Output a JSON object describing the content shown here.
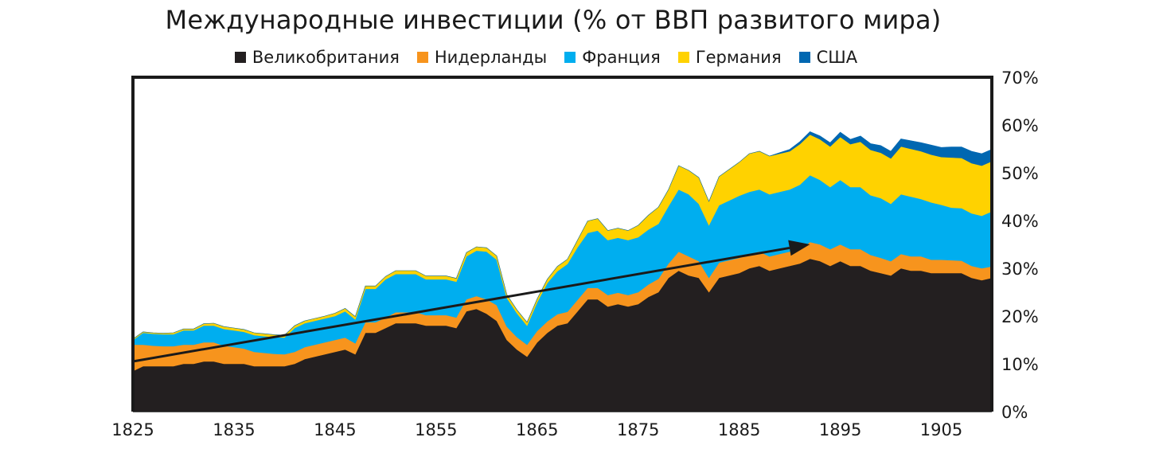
{
  "chart_data": {
    "type": "area",
    "stacked": true,
    "title": "Международные инвестиции (% от ВВП развитого мира)",
    "x_ticks": [
      1825,
      1835,
      1845,
      1855,
      1865,
      1875,
      1885,
      1895,
      1905
    ],
    "xlim": [
      1825,
      1910
    ],
    "y_ticks": [
      "0%",
      "10%",
      "20%",
      "30%",
      "40%",
      "50%",
      "60%",
      "70%"
    ],
    "ylim": [
      0,
      70
    ],
    "y_axis_side": "right",
    "legend_position": "top",
    "grid": false,
    "arrow": {
      "from": [
        1825,
        10.5
      ],
      "to": [
        1892,
        35
      ]
    },
    "x": [
      1825,
      1826,
      1827,
      1828,
      1829,
      1830,
      1831,
      1832,
      1833,
      1834,
      1835,
      1836,
      1837,
      1838,
      1839,
      1840,
      1841,
      1842,
      1843,
      1844,
      1845,
      1846,
      1847,
      1848,
      1849,
      1850,
      1851,
      1852,
      1853,
      1854,
      1855,
      1856,
      1857,
      1858,
      1859,
      1860,
      1861,
      1862,
      1863,
      1864,
      1865,
      1866,
      1867,
      1868,
      1869,
      1870,
      1871,
      1872,
      1873,
      1874,
      1875,
      1876,
      1877,
      1878,
      1879,
      1880,
      1881,
      1882,
      1883,
      1884,
      1885,
      1886,
      1887,
      1888,
      1889,
      1890,
      1891,
      1892,
      1893,
      1894,
      1895,
      1896,
      1897,
      1898,
      1899,
      1900,
      1901,
      1902,
      1903,
      1904,
      1905,
      1906,
      1907,
      1908,
      1909,
      1910
    ],
    "series": [
      {
        "name": "Великобритания",
        "color": "#231f20",
        "values": [
          8.5,
          9.5,
          9.5,
          9.5,
          9.5,
          10,
          10,
          10.5,
          10.5,
          10,
          10,
          10,
          9.5,
          9.5,
          9.5,
          9.5,
          10,
          11,
          11.5,
          12,
          12.5,
          13,
          12,
          16.5,
          16.5,
          17.5,
          18.5,
          18.5,
          18.5,
          18,
          18,
          18,
          17.5,
          21,
          21.5,
          20.5,
          19,
          15,
          13,
          11.5,
          14.5,
          16.5,
          18,
          18.5,
          21,
          23.5,
          23.5,
          22,
          22.5,
          22,
          22.5,
          24,
          25,
          28,
          29.5,
          28.5,
          28,
          25,
          28,
          28.5,
          29,
          30,
          30.5,
          29.5,
          30,
          30.5,
          31,
          32,
          31.5,
          30.5,
          31.5,
          30.5,
          30.5,
          29.5,
          29,
          28.5,
          30,
          29.5,
          29.5,
          29,
          29,
          29,
          29,
          28,
          27.5,
          28
        ]
      },
      {
        "name": "Нидерланды",
        "color": "#f7941d",
        "values": [
          5.5,
          4.5,
          4.3,
          4.2,
          4.2,
          4,
          4,
          4,
          4,
          3.8,
          3.5,
          3.2,
          3,
          2.8,
          2.6,
          2.5,
          2.5,
          2.5,
          2.5,
          2.5,
          2.5,
          2.5,
          2.3,
          2.2,
          2.2,
          2.2,
          2.3,
          2.3,
          2.3,
          2.2,
          2.2,
          2.2,
          2.2,
          2.5,
          2.7,
          3,
          3.3,
          2.8,
          2.6,
          2.5,
          2.4,
          2.4,
          2.4,
          2.4,
          2.4,
          2.4,
          2.4,
          2.4,
          2.4,
          2.4,
          2.5,
          2.6,
          2.8,
          3,
          4,
          4,
          3.5,
          3,
          3.2,
          3.2,
          3.2,
          3,
          3,
          3,
          3,
          3,
          3,
          3.5,
          3.5,
          3.5,
          3.5,
          3.5,
          3.5,
          3.3,
          3.2,
          3,
          3,
          3,
          3,
          2.8,
          2.8,
          2.7,
          2.6,
          2.5,
          2.5,
          2.4
        ]
      },
      {
        "name": "Франция",
        "color": "#00aeef",
        "values": [
          1,
          2.5,
          2.5,
          2.5,
          2.5,
          3,
          3,
          3.5,
          3.5,
          3.5,
          3.5,
          3.5,
          3.5,
          3.5,
          3.5,
          3.5,
          5,
          5,
          5,
          5,
          5,
          5.5,
          5,
          7,
          7,
          8,
          8,
          8,
          8,
          7.5,
          7.5,
          7.5,
          7.5,
          9,
          9.5,
          10,
          9.5,
          6,
          5,
          4,
          6,
          8,
          9,
          10,
          11,
          11.5,
          12,
          11.5,
          11.5,
          11.5,
          11.5,
          11.5,
          11.5,
          12,
          13,
          13,
          12,
          11,
          12,
          12.5,
          13,
          13,
          13,
          13,
          13,
          13,
          13.5,
          14,
          13.5,
          13,
          13.5,
          13,
          13,
          12.5,
          12.5,
          12,
          12.5,
          12.5,
          12,
          12,
          11.5,
          11,
          11,
          11,
          11,
          11.5
        ]
      },
      {
        "name": "Германия",
        "color": "#ffd200",
        "values": [
          0.2,
          0.2,
          0.2,
          0.2,
          0.3,
          0.3,
          0.3,
          0.4,
          0.5,
          0.5,
          0.5,
          0.5,
          0.5,
          0.5,
          0.5,
          0.5,
          0.5,
          0.5,
          0.5,
          0.5,
          0.6,
          0.6,
          0.6,
          0.6,
          0.6,
          0.6,
          0.7,
          0.7,
          0.7,
          0.7,
          0.7,
          0.7,
          0.7,
          0.8,
          0.8,
          0.8,
          0.8,
          0.7,
          0.7,
          0.7,
          0.7,
          0.8,
          1,
          1,
          1.5,
          2.5,
          2.5,
          2,
          2,
          2,
          2.5,
          3,
          3.5,
          3.5,
          5,
          5,
          5.5,
          5,
          6,
          6.5,
          7,
          8,
          8,
          8,
          8,
          8,
          8.5,
          8.5,
          8.5,
          8.5,
          9,
          9,
          9.5,
          9.5,
          9.5,
          9.5,
          10,
          10,
          10,
          10,
          10,
          10.5,
          10.5,
          10.5,
          10.5,
          10.5
        ]
      },
      {
        "name": "США",
        "color": "#0067b1",
        "values": [
          0,
          0,
          0,
          0,
          0,
          0,
          0,
          0,
          0,
          0,
          0,
          0,
          0,
          0,
          0,
          0,
          0,
          0,
          0,
          0,
          0,
          0,
          0,
          0,
          0,
          0,
          0,
          0,
          0,
          0,
          0,
          0,
          0,
          0,
          0,
          0,
          0,
          0,
          0,
          0,
          0,
          0,
          0,
          0,
          0,
          0,
          0,
          0,
          0,
          0,
          0,
          0,
          0,
          0,
          0,
          0,
          0,
          0,
          0,
          0,
          0,
          0,
          0,
          0,
          0.2,
          0.4,
          0.5,
          0.6,
          0.7,
          0.8,
          1,
          1,
          1.2,
          1.3,
          1.5,
          1.5,
          1.6,
          1.7,
          1.8,
          2,
          2,
          2.2,
          2.3,
          2.5,
          2.5,
          2.5
        ]
      }
    ]
  }
}
